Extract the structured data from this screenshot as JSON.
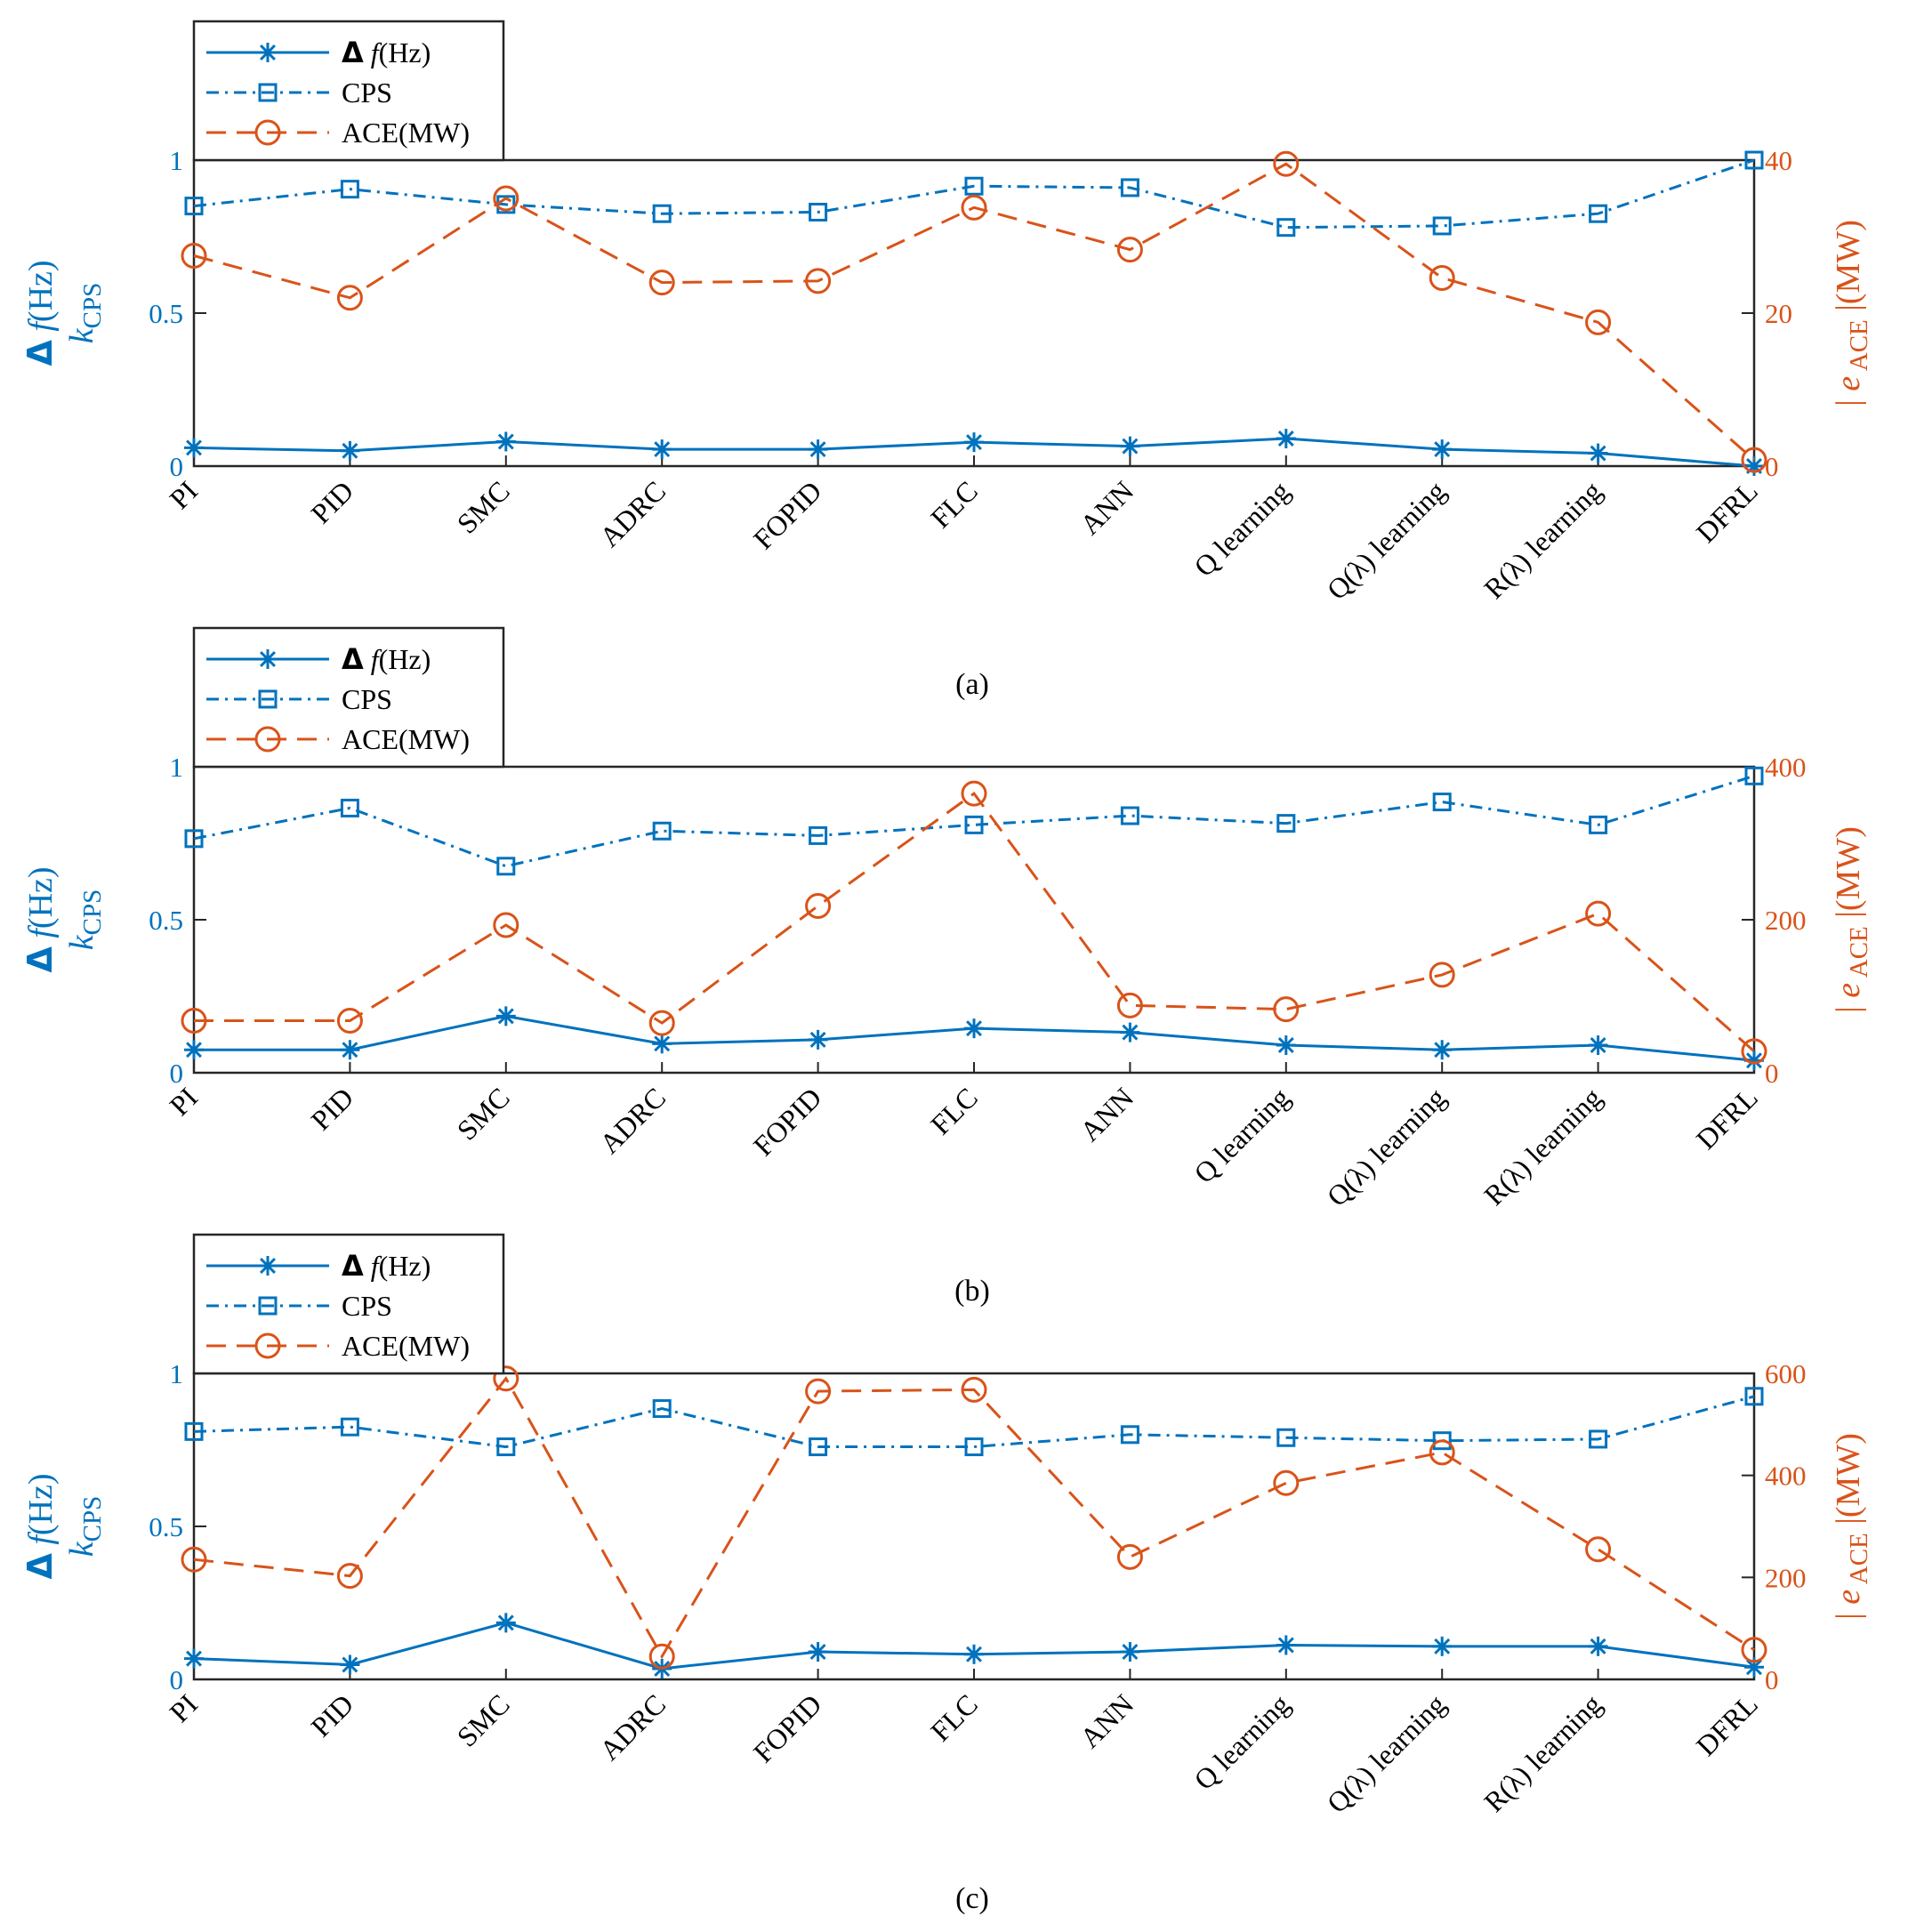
{
  "colors": {
    "freq": "#0072BD",
    "cps": "#0072BD",
    "ace": "#D95319",
    "axis": "#262626",
    "text": "#000000"
  },
  "legend": {
    "freq_delta": "Δ",
    "freq_f": "f",
    "freq_unit": "(Hz)",
    "cps": "CPS",
    "ace": "ACE(MW)"
  },
  "left_axis_label": {
    "delta": "Δ",
    "f": "f",
    "unit": "(Hz)",
    "k": "k",
    "k_sub": "CPS"
  },
  "right_axis_label": {
    "bar1": "|",
    "e": "e",
    "e_sub": "ACE",
    "tail": "|(MW)"
  },
  "chart_data": [
    {
      "type": "line",
      "caption": "(a)",
      "categories": [
        "PI",
        "PID",
        "SMC",
        "ADRC",
        "FOPID",
        "FLC",
        "ANN",
        "Q learning",
        "Q(λ) learning",
        "R(λ) learning",
        "DFRL"
      ],
      "left_ylim": [
        0,
        1
      ],
      "left_ticks": [
        "0",
        "0.5",
        "1"
      ],
      "right_ylim": [
        0,
        40
      ],
      "right_ticks": [
        "0",
        "20",
        "40"
      ],
      "series": [
        {
          "name": "Δf(Hz)",
          "axis": "left",
          "marker": "asterisk",
          "style": "solid",
          "values": [
            0.06,
            0.05,
            0.08,
            0.055,
            0.055,
            0.078,
            0.065,
            0.09,
            0.055,
            0.042,
            0.0
          ]
        },
        {
          "name": "CPS",
          "axis": "left",
          "marker": "square",
          "style": "dashdot",
          "values": [
            0.85,
            0.905,
            0.855,
            0.825,
            0.83,
            0.915,
            0.91,
            0.78,
            0.785,
            0.825,
            1.0
          ]
        },
        {
          "name": "ACE(MW)",
          "axis": "right",
          "marker": "circle",
          "style": "dashed",
          "values": [
            27.5,
            22,
            35,
            24,
            24.2,
            33.8,
            28.3,
            39.5,
            24.6,
            18.8,
            0.8
          ]
        }
      ]
    },
    {
      "type": "line",
      "caption": "(b)",
      "categories": [
        "PI",
        "PID",
        "SMC",
        "ADRC",
        "FOPID",
        "FLC",
        "ANN",
        "Q learning",
        "Q(λ) learning",
        "R(λ) learning",
        "DFRL"
      ],
      "left_ylim": [
        0,
        1
      ],
      "left_ticks": [
        "0",
        "0.5",
        "1"
      ],
      "right_ylim": [
        0,
        400
      ],
      "right_ticks": [
        "0",
        "200",
        "400"
      ],
      "series": [
        {
          "name": "Δf(Hz)",
          "axis": "left",
          "marker": "asterisk",
          "style": "solid",
          "values": [
            0.075,
            0.075,
            0.185,
            0.095,
            0.108,
            0.145,
            0.132,
            0.09,
            0.075,
            0.09,
            0.04
          ]
        },
        {
          "name": "CPS",
          "axis": "left",
          "marker": "square",
          "style": "dashdot",
          "values": [
            0.765,
            0.865,
            0.675,
            0.79,
            0.775,
            0.81,
            0.84,
            0.815,
            0.885,
            0.81,
            0.97
          ]
        },
        {
          "name": "ACE(MW)",
          "axis": "right",
          "marker": "circle",
          "style": "dashed",
          "values": [
            68,
            68,
            193,
            65,
            218,
            365,
            88,
            83,
            128,
            208,
            28
          ]
        }
      ]
    },
    {
      "type": "line",
      "caption": "(c)",
      "categories": [
        "PI",
        "PID",
        "SMC",
        "ADRC",
        "FOPID",
        "FLC",
        "ANN",
        "Q learning",
        "Q(λ) learning",
        "R(λ) learning",
        "DFRL"
      ],
      "left_ylim": [
        0,
        1
      ],
      "left_ticks": [
        "0",
        "0.5",
        "1"
      ],
      "right_ylim": [
        0,
        600
      ],
      "right_ticks": [
        "0",
        "200",
        "400",
        "600"
      ],
      "series": [
        {
          "name": "Δf(Hz)",
          "axis": "left",
          "marker": "asterisk",
          "style": "solid",
          "values": [
            0.068,
            0.048,
            0.185,
            0.035,
            0.09,
            0.082,
            0.09,
            0.112,
            0.108,
            0.108,
            0.04
          ]
        },
        {
          "name": "CPS",
          "axis": "left",
          "marker": "square",
          "style": "dashdot",
          "values": [
            0.81,
            0.825,
            0.76,
            0.885,
            0.76,
            0.76,
            0.8,
            0.79,
            0.78,
            0.785,
            0.925
          ]
        },
        {
          "name": "ACE(MW)",
          "axis": "right",
          "marker": "circle",
          "style": "dashed",
          "values": [
            235,
            203,
            590,
            45,
            565,
            568,
            240,
            385,
            445,
            255,
            58
          ]
        }
      ]
    }
  ]
}
